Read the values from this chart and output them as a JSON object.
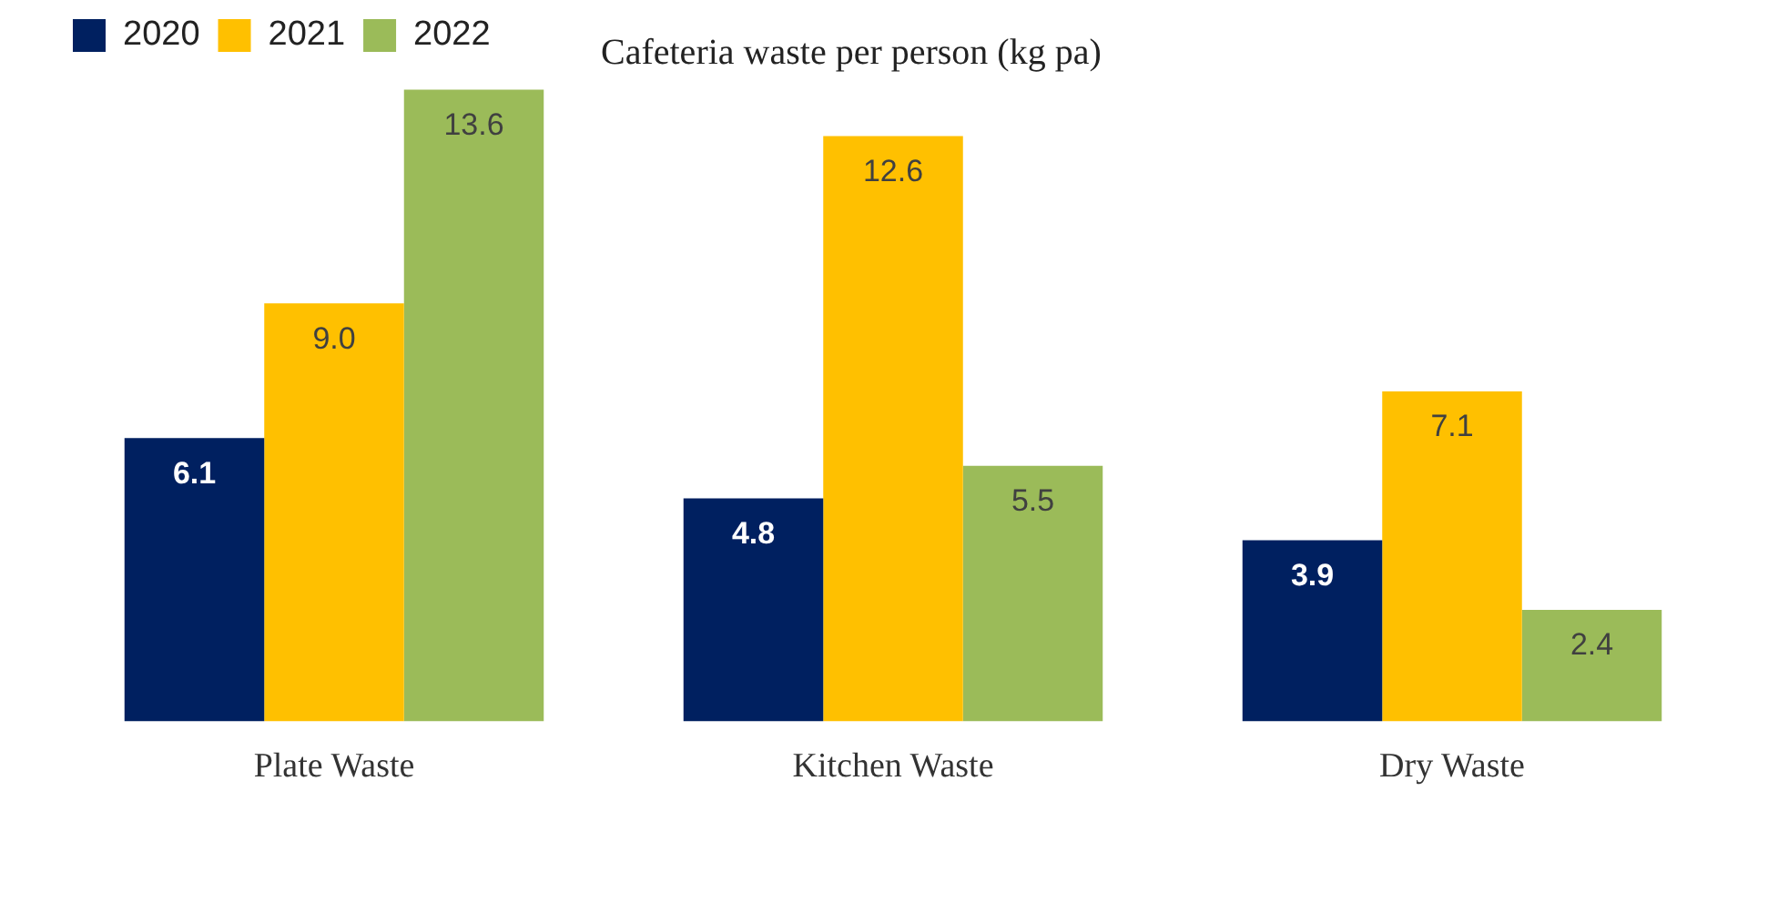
{
  "chart_data": {
    "type": "bar",
    "title": "Cafeteria waste per person (kg pa)",
    "categories": [
      "Plate Waste",
      "Kitchen Waste",
      "Dry Waste"
    ],
    "series": [
      {
        "name": "2020",
        "color": "#002060",
        "values": [
          6.1,
          4.8,
          3.9
        ],
        "value_labels": [
          "6.1",
          "4.8",
          "3.9"
        ]
      },
      {
        "name": "2021",
        "color": "#ffc000",
        "values": [
          9.0,
          12.6,
          7.1
        ],
        "value_labels": [
          "9.0",
          "12.6",
          "7.1"
        ]
      },
      {
        "name": "2022",
        "color": "#9bbb59",
        "values": [
          13.6,
          5.5,
          2.4
        ],
        "value_labels": [
          "13.6",
          "5.5",
          "2.4"
        ]
      }
    ],
    "legend": "top left"
  }
}
